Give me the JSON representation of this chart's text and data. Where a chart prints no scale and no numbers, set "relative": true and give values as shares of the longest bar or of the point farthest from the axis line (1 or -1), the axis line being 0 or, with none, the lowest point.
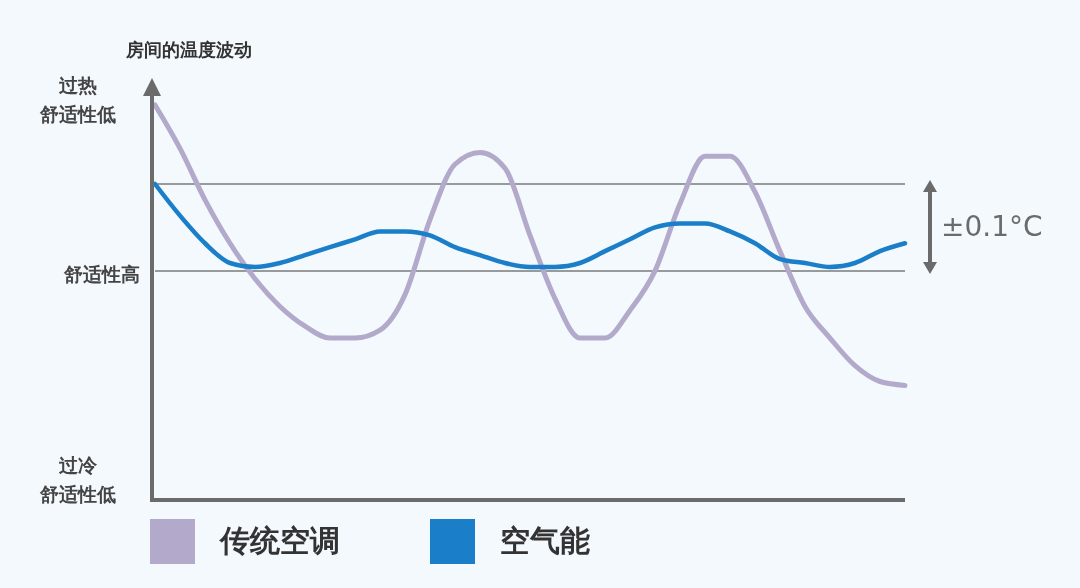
{
  "chart_data": {
    "type": "line",
    "relative": true,
    "ylabel": "房间的温度波动",
    "categories": [
      null,
      null,
      null,
      null,
      null,
      null,
      null,
      null,
      null,
      null,
      null,
      null,
      null,
      null,
      null,
      null,
      null,
      null,
      null,
      null,
      null,
      null,
      null,
      null,
      null,
      null,
      null,
      null,
      null,
      null,
      null
    ],
    "series": [
      {
        "name": "传统空调",
        "color": "#b3aacb",
        "values": [
          1.0,
          0.89,
          0.76,
          0.65,
          0.56,
          0.49,
          0.44,
          0.41,
          0.41,
          0.43,
          0.52,
          0.71,
          0.85,
          0.88,
          0.84,
          0.67,
          0.51,
          0.41,
          0.41,
          0.48,
          0.58,
          0.75,
          0.87,
          0.87,
          0.78,
          0.63,
          0.49,
          0.41,
          0.34,
          0.3,
          0.29
        ]
      },
      {
        "name": "空气能",
        "color": "#1a7fc8",
        "values": [
          0.8,
          0.72,
          0.65,
          0.6,
          0.59,
          0.6,
          0.62,
          0.64,
          0.66,
          0.68,
          0.68,
          0.67,
          0.64,
          0.62,
          0.6,
          0.59,
          0.59,
          0.6,
          0.63,
          0.66,
          0.69,
          0.7,
          0.7,
          0.68,
          0.65,
          0.61,
          0.6,
          0.59,
          0.6,
          0.63,
          0.65
        ]
      }
    ],
    "ref_lines": [
      {
        "axis": "y",
        "value": 0.8,
        "label": null,
        "color": "#7a7a7a"
      },
      {
        "axis": "y",
        "value": 0.58,
        "label": "舒适性高",
        "color": "#7a7a7a"
      }
    ],
    "annotations": [
      "过热",
      "舒适性低",
      "过冷",
      "舒适性低",
      "±0.1°C"
    ],
    "legend": "bottom",
    "marker": "none",
    "line_style": "solid"
  }
}
